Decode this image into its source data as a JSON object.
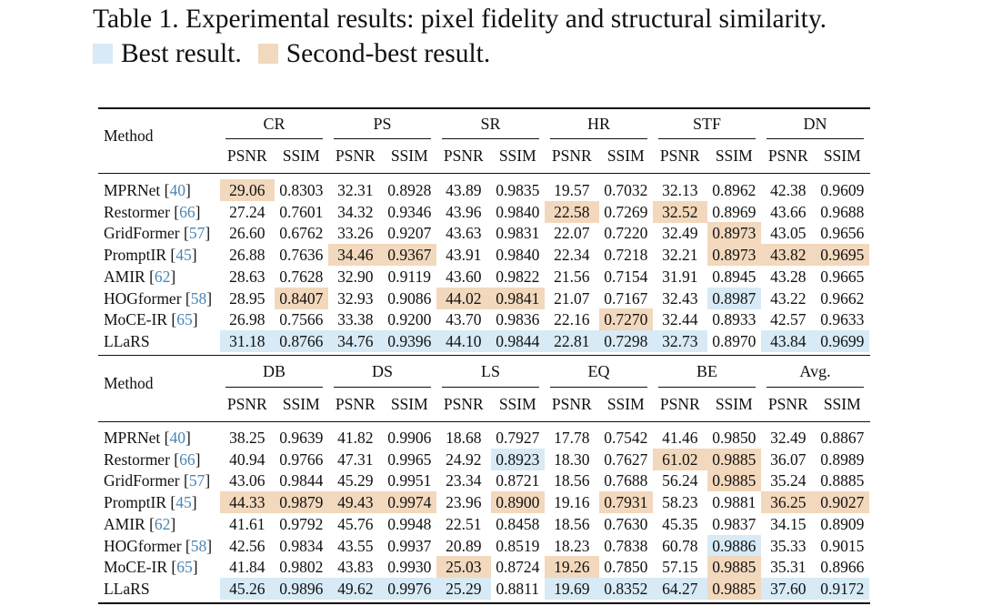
{
  "caption": "Table 1. Experimental results: pixel fidelity and structural similarity.",
  "legend": {
    "best_label": "Best result.",
    "second_label": "Second-best result.",
    "best_color": "#d7eaf5",
    "second_color": "#f2d8bd"
  },
  "method_header": "Method",
  "metric_labels": [
    "PSNR",
    "SSIM"
  ],
  "tables": [
    {
      "groups": [
        "CR",
        "PS",
        "SR",
        "HR",
        "STF",
        "DN"
      ],
      "rows": [
        {
          "name": "MPRNet",
          "cite": "40",
          "values": [
            "29.06",
            "0.8303",
            "32.31",
            "0.8928",
            "43.89",
            "0.9835",
            "19.57",
            "0.7032",
            "32.13",
            "0.8962",
            "42.38",
            "0.9609"
          ],
          "marks": [
            "s",
            "",
            "",
            "",
            "",
            "",
            "",
            "",
            "",
            "",
            "",
            ""
          ]
        },
        {
          "name": "Restormer",
          "cite": "66",
          "values": [
            "27.24",
            "0.7601",
            "34.32",
            "0.9346",
            "43.96",
            "0.9840",
            "22.58",
            "0.7269",
            "32.52",
            "0.8969",
            "43.66",
            "0.9688"
          ],
          "marks": [
            "",
            "",
            "",
            "",
            "",
            "",
            "s",
            "",
            "s",
            "",
            "",
            ""
          ]
        },
        {
          "name": "GridFormer",
          "cite": "57",
          "values": [
            "26.60",
            "0.6762",
            "33.26",
            "0.9207",
            "43.63",
            "0.9831",
            "22.07",
            "0.7220",
            "32.49",
            "0.8973",
            "43.05",
            "0.9656"
          ],
          "marks": [
            "",
            "",
            "",
            "",
            "",
            "",
            "",
            "",
            "",
            "s",
            "",
            ""
          ]
        },
        {
          "name": "PromptIR",
          "cite": "45",
          "values": [
            "26.88",
            "0.7636",
            "34.46",
            "0.9367",
            "43.91",
            "0.9840",
            "22.34",
            "0.7218",
            "32.21",
            "0.8973",
            "43.82",
            "0.9695"
          ],
          "marks": [
            "",
            "",
            "s",
            "s",
            "",
            "",
            "",
            "",
            "",
            "s",
            "s",
            "s"
          ]
        },
        {
          "name": "AMIR",
          "cite": "62",
          "values": [
            "28.63",
            "0.7628",
            "32.90",
            "0.9119",
            "43.60",
            "0.9822",
            "21.56",
            "0.7154",
            "31.91",
            "0.8945",
            "43.28",
            "0.9665"
          ],
          "marks": [
            "",
            "",
            "",
            "",
            "",
            "",
            "",
            "",
            "",
            "",
            "",
            ""
          ]
        },
        {
          "name": "HOGformer",
          "cite": "58",
          "values": [
            "28.95",
            "0.8407",
            "32.93",
            "0.9086",
            "44.02",
            "0.9841",
            "21.07",
            "0.7167",
            "32.43",
            "0.8987",
            "43.22",
            "0.9662"
          ],
          "marks": [
            "",
            "s",
            "",
            "",
            "s",
            "s",
            "",
            "",
            "",
            "b",
            "",
            ""
          ]
        },
        {
          "name": "MoCE-IR",
          "cite": "65",
          "values": [
            "26.98",
            "0.7566",
            "33.38",
            "0.9200",
            "43.70",
            "0.9836",
            "22.16",
            "0.7270",
            "32.44",
            "0.8933",
            "42.57",
            "0.9633"
          ],
          "marks": [
            "",
            "",
            "",
            "",
            "",
            "",
            "",
            "s",
            "",
            "",
            "",
            ""
          ]
        },
        {
          "name": "LLaRS",
          "cite": "",
          "values": [
            "31.18",
            "0.8766",
            "34.76",
            "0.9396",
            "44.10",
            "0.9844",
            "22.81",
            "0.7298",
            "32.73",
            "0.8970",
            "43.84",
            "0.9699"
          ],
          "marks": [
            "b",
            "b",
            "b",
            "b",
            "b",
            "b",
            "b",
            "b",
            "b",
            "",
            "b",
            "b"
          ]
        }
      ]
    },
    {
      "groups": [
        "DB",
        "DS",
        "LS",
        "EQ",
        "BE",
        "Avg."
      ],
      "rows": [
        {
          "name": "MPRNet",
          "cite": "40",
          "values": [
            "38.25",
            "0.9639",
            "41.82",
            "0.9906",
            "18.68",
            "0.7927",
            "17.78",
            "0.7542",
            "41.46",
            "0.9850",
            "32.49",
            "0.8867"
          ],
          "marks": [
            "",
            "",
            "",
            "",
            "",
            "",
            "",
            "",
            "",
            "",
            "",
            ""
          ]
        },
        {
          "name": "Restormer",
          "cite": "66",
          "values": [
            "40.94",
            "0.9766",
            "47.31",
            "0.9965",
            "24.92",
            "0.8923",
            "18.30",
            "0.7627",
            "61.02",
            "0.9885",
            "36.07",
            "0.8989"
          ],
          "marks": [
            "",
            "",
            "",
            "",
            "",
            "b",
            "",
            "",
            "s",
            "s",
            "",
            ""
          ]
        },
        {
          "name": "GridFormer",
          "cite": "57",
          "values": [
            "43.06",
            "0.9844",
            "45.29",
            "0.9951",
            "23.34",
            "0.8721",
            "18.56",
            "0.7688",
            "56.24",
            "0.9885",
            "35.24",
            "0.8885"
          ],
          "marks": [
            "",
            "",
            "",
            "",
            "",
            "",
            "",
            "",
            "",
            "s",
            "",
            ""
          ]
        },
        {
          "name": "PromptIR",
          "cite": "45",
          "values": [
            "44.33",
            "0.9879",
            "49.43",
            "0.9974",
            "23.96",
            "0.8900",
            "19.16",
            "0.7931",
            "58.23",
            "0.9881",
            "36.25",
            "0.9027"
          ],
          "marks": [
            "s",
            "s",
            "s",
            "s",
            "",
            "s",
            "",
            "s",
            "",
            "",
            "s",
            "s"
          ]
        },
        {
          "name": "AMIR",
          "cite": "62",
          "values": [
            "41.61",
            "0.9792",
            "45.76",
            "0.9948",
            "22.51",
            "0.8458",
            "18.56",
            "0.7630",
            "45.35",
            "0.9837",
            "34.15",
            "0.8909"
          ],
          "marks": [
            "",
            "",
            "",
            "",
            "",
            "",
            "",
            "",
            "",
            "",
            "",
            ""
          ]
        },
        {
          "name": "HOGformer",
          "cite": "58",
          "values": [
            "42.56",
            "0.9834",
            "43.55",
            "0.9937",
            "20.89",
            "0.8519",
            "18.23",
            "0.7838",
            "60.78",
            "0.9886",
            "35.33",
            "0.9015"
          ],
          "marks": [
            "",
            "",
            "",
            "",
            "",
            "",
            "",
            "",
            "",
            "b",
            "",
            ""
          ]
        },
        {
          "name": "MoCE-IR",
          "cite": "65",
          "values": [
            "41.84",
            "0.9802",
            "43.83",
            "0.9930",
            "25.03",
            "0.8724",
            "19.26",
            "0.7850",
            "57.15",
            "0.9885",
            "35.31",
            "0.8966"
          ],
          "marks": [
            "",
            "",
            "",
            "",
            "s",
            "",
            "s",
            "",
            "",
            "s",
            "",
            ""
          ]
        },
        {
          "name": "LLaRS",
          "cite": "",
          "values": [
            "45.26",
            "0.9896",
            "49.62",
            "0.9976",
            "25.29",
            "0.8811",
            "19.69",
            "0.8352",
            "64.27",
            "0.9885",
            "37.60",
            "0.9172"
          ],
          "marks": [
            "b",
            "b",
            "b",
            "b",
            "b",
            "",
            "b",
            "b",
            "b",
            "s",
            "b",
            "b"
          ]
        }
      ]
    }
  ]
}
